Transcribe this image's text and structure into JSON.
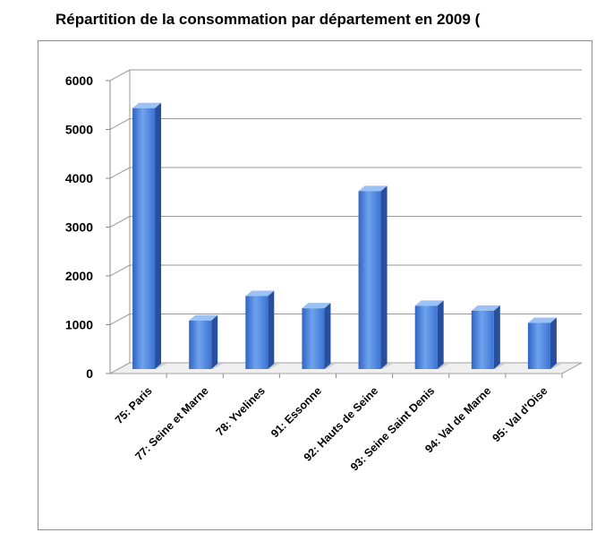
{
  "chart_data": {
    "type": "bar",
    "title": "Répartition de la consommation par département en 2009 (",
    "xlabel": "",
    "ylabel": "",
    "categories": [
      "75: Paris",
      "77: Seine et Marne",
      "78: Yvelines",
      "91: Essonne",
      "92: Hauts de Seine",
      "93: Seine Saint Denis",
      "94: Val de Marne",
      "95: Val d'Oise"
    ],
    "values": [
      5400,
      1050,
      1550,
      1300,
      3700,
      1350,
      1250,
      1000
    ],
    "ylim": [
      0,
      6000
    ],
    "yticks": [
      "0",
      "1000",
      "2000",
      "3000",
      "4000",
      "5000",
      "6000"
    ],
    "grid": true,
    "legend": "none",
    "bar_color": "#4f86d9"
  }
}
